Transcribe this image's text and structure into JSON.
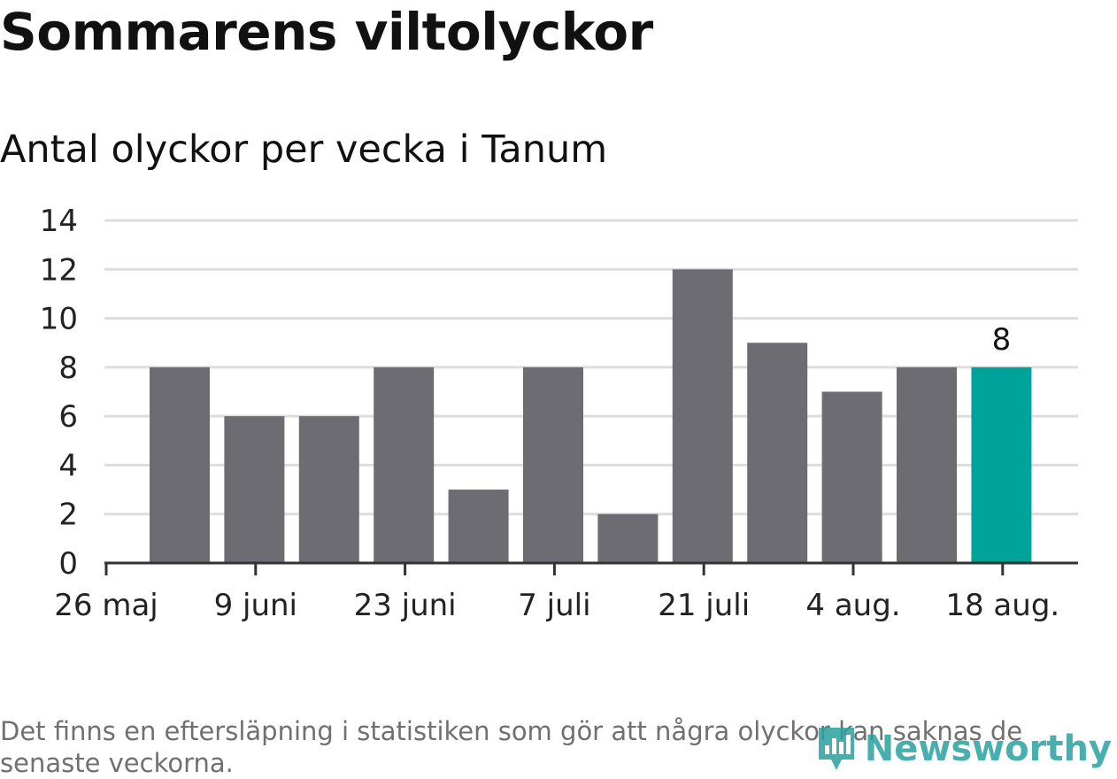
{
  "chart_data": {
    "type": "bar",
    "title": "Sommarens viltolyckor",
    "subtitle": "Antal olyckor per vecka i Tanum",
    "x_tick_labels": [
      "26 maj",
      "9 juni",
      "23 juni",
      "7 juli",
      "21 juli",
      "4 aug.",
      "18 aug."
    ],
    "weeks": [
      "2 juni",
      "9 juni",
      "16 juni",
      "23 juni",
      "30 juni",
      "7 juli",
      "14 juli",
      "21 juli",
      "28 juli",
      "4 aug.",
      "11 aug.",
      "18 aug."
    ],
    "values": [
      8,
      6,
      6,
      8,
      3,
      8,
      2,
      12,
      9,
      7,
      8,
      8
    ],
    "highlight_index": 11,
    "highlight_label": "8",
    "ylim": [
      0,
      14
    ],
    "yticks": [
      0,
      2,
      4,
      6,
      8,
      10,
      12,
      14
    ],
    "grid": true,
    "colors": {
      "bar": "#6d6c72",
      "highlight": "#00a39a",
      "grid": "#dddddd",
      "axis": "#333333"
    }
  },
  "footnote": "Det finns en eftersläpning i statistiken som gör att några olyckor kan saknas de senaste veckorna.",
  "brand": {
    "name": "Newsworthy",
    "color": "#2aa0a0"
  }
}
